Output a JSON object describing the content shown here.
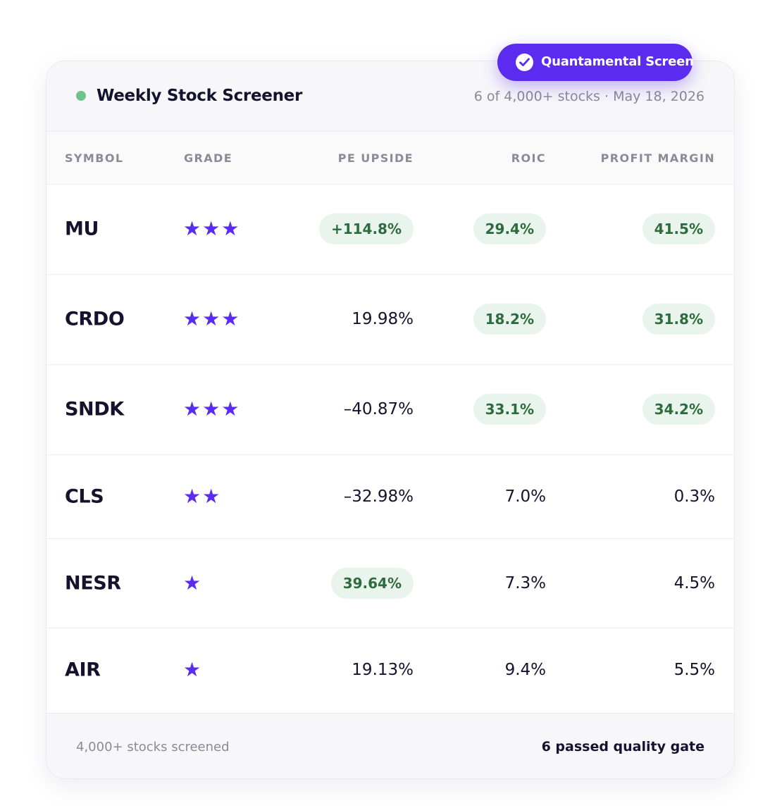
{
  "header": {
    "title": "Weekly Stock Screener",
    "meta": "6 of 4,000+ stocks · May 18, 2026",
    "status_color": "#6cc48c"
  },
  "badge": {
    "label": "Quantamental Screen",
    "icon": "check-circle-icon",
    "color": "#5b2bef"
  },
  "columns": {
    "symbol": "SYMBOL",
    "grade": "GRADE",
    "pe_upside": "PE UPSIDE",
    "roic": "ROIC",
    "profit_margin": "PROFIT MARGIN"
  },
  "rows": [
    {
      "symbol": "MU",
      "stars": 3,
      "stars_text": "★★★",
      "pe_upside": "+114.8%",
      "pe_hl": true,
      "roic": "29.4%",
      "roic_hl": true,
      "margin": "41.5%",
      "margin_hl": true
    },
    {
      "symbol": "CRDO",
      "stars": 3,
      "stars_text": "★★★",
      "pe_upside": "19.98%",
      "pe_hl": false,
      "roic": "18.2%",
      "roic_hl": true,
      "margin": "31.8%",
      "margin_hl": true
    },
    {
      "symbol": "SNDK",
      "stars": 3,
      "stars_text": "★★★",
      "pe_upside": "–40.87%",
      "pe_hl": false,
      "roic": "33.1%",
      "roic_hl": true,
      "margin": "34.2%",
      "margin_hl": true
    },
    {
      "symbol": "CLS",
      "stars": 2,
      "stars_text": "★★",
      "pe_upside": "–32.98%",
      "pe_hl": false,
      "roic": "7.0%",
      "roic_hl": false,
      "margin": "0.3%",
      "margin_hl": false
    },
    {
      "symbol": "NESR",
      "stars": 1,
      "stars_text": "★",
      "pe_upside": "39.64%",
      "pe_hl": true,
      "roic": "7.3%",
      "roic_hl": false,
      "margin": "4.5%",
      "margin_hl": false
    },
    {
      "symbol": "AIR",
      "stars": 1,
      "stars_text": "★",
      "pe_upside": "19.13%",
      "pe_hl": false,
      "roic": "9.4%",
      "roic_hl": false,
      "margin": "5.5%",
      "margin_hl": false
    }
  ],
  "colors": {
    "accent": "#5b2bef",
    "positive_bg": "#e9f5ec",
    "positive_text": "#2e6b3e",
    "muted_text": "#8a8a98"
  },
  "footer": {
    "left": "4,000+ stocks screened",
    "right": "6 passed quality gate"
  }
}
